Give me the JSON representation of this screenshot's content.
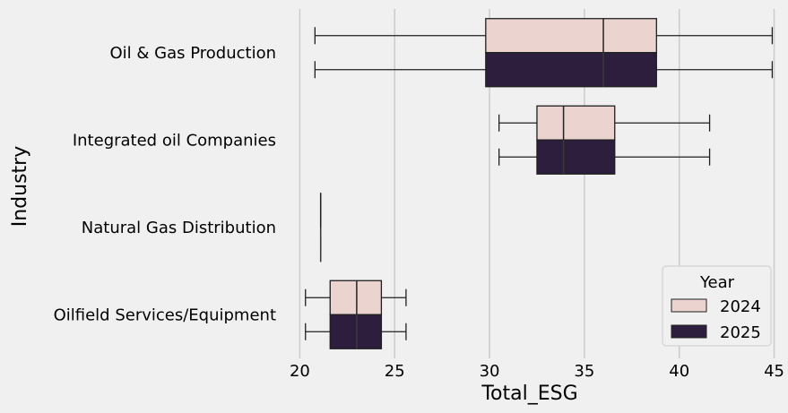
{
  "chart_data": {
    "type": "box",
    "orientation": "horizontal",
    "xlabel": "Total_ESG",
    "ylabel": "Industry",
    "xlim": [
      18.8,
      45.4
    ],
    "xticks": [
      20,
      25,
      30,
      35,
      40,
      45
    ],
    "grid": "x",
    "categories": [
      "Oil & Gas Production",
      "Integrated oil Companies",
      "Natural Gas Distribution",
      "Oilfield Services/Equipment"
    ],
    "legend": {
      "title": "Year",
      "placement": "bottom-right"
    },
    "series": [
      {
        "name": "2024",
        "color": "#ebd3d0",
        "boxes": [
          {
            "whislo": 20.8,
            "q1": 29.8,
            "med": 36.0,
            "q3": 38.8,
            "whishi": 44.9
          },
          {
            "whislo": 30.5,
            "q1": 32.5,
            "med": 33.9,
            "q3": 36.6,
            "whishi": 41.6
          },
          {
            "whislo": 21.1,
            "q1": 21.1,
            "med": 21.1,
            "q3": 21.1,
            "whishi": 21.1
          },
          {
            "whislo": 20.3,
            "q1": 21.6,
            "med": 23.0,
            "q3": 24.3,
            "whishi": 25.6
          }
        ]
      },
      {
        "name": "2025",
        "color": "#2d1e3e",
        "boxes": [
          {
            "whislo": 20.8,
            "q1": 29.8,
            "med": 36.0,
            "q3": 38.8,
            "whishi": 44.9
          },
          {
            "whislo": 30.5,
            "q1": 32.5,
            "med": 33.9,
            "q3": 36.6,
            "whishi": 41.6
          },
          {
            "whislo": 21.1,
            "q1": 21.1,
            "med": 21.1,
            "q3": 21.1,
            "whishi": 21.1
          },
          {
            "whislo": 20.3,
            "q1": 21.6,
            "med": 23.0,
            "q3": 24.3,
            "whishi": 25.6
          }
        ]
      }
    ]
  }
}
